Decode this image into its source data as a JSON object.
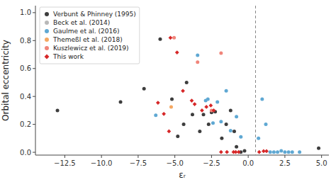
{
  "chart_data": {
    "type": "scatter",
    "xlabel": "εᵣ",
    "ylabel": "Orbital eccentricity",
    "xlim": [
      -14.5,
      5.5
    ],
    "ylim": [
      -0.02,
      1.05
    ],
    "xticks": [
      {
        "value": -12.5,
        "label": "−12.5"
      },
      {
        "value": -10.0,
        "label": "−10.0"
      },
      {
        "value": -7.5,
        "label": "−7.5"
      },
      {
        "value": -5.0,
        "label": "−5.0"
      },
      {
        "value": -2.5,
        "label": "−2.5"
      },
      {
        "value": 0.0,
        "label": "0.0"
      },
      {
        "value": 2.5,
        "label": "2.5"
      },
      {
        "value": 5.0,
        "label": "5.0"
      }
    ],
    "yticks": [
      {
        "value": 0.0,
        "label": "0.0"
      },
      0.2,
      0.4,
      0.6,
      0.8,
      {
        "value": 1.0,
        "label": "1.0"
      }
    ],
    "grid": false,
    "legend": "upper left",
    "reference_lines": [
      {
        "x": 0.5,
        "color": "#888888",
        "line_style": "dashed"
      }
    ],
    "series": [
      {
        "name": "Verbunt & Phinney (1995)",
        "color": "#3d3d3d",
        "marker": "circle",
        "x": [
          -13.0,
          -8.7,
          -7.1,
          -6.0,
          -5.2,
          -4.8,
          -4.4,
          -4.2,
          -3.8,
          -3.3,
          -3.05,
          -2.7,
          -2.5,
          -2.25,
          -1.8,
          -1.5,
          -1.2,
          -0.95,
          -0.8,
          -0.5,
          -0.25,
          4.8
        ],
        "values": [
          0.3,
          0.36,
          0.455,
          0.81,
          0.38,
          0.115,
          0.2,
          0.5,
          0.27,
          0.15,
          0.27,
          0.2,
          0.285,
          0.29,
          0.1,
          0.2,
          0.3,
          0.15,
          0.04,
          0.002,
          0.01,
          0.03
        ]
      },
      {
        "name": "Beck et al. (2014)",
        "color": "#b8b8b8",
        "marker": "circle",
        "x": [],
        "values": []
      },
      {
        "name": "Gaulme et al. (2016)",
        "color": "#5fa8d3",
        "marker": "circle",
        "x": [
          -6.3,
          -3.45,
          -2.9,
          -2.75,
          -2.4,
          -2.1,
          -1.85,
          -1.5,
          -1.2,
          -0.8,
          -0.5,
          0.7,
          0.95,
          1.2,
          1.5,
          1.75,
          2.0,
          2.25,
          2.5,
          2.75,
          3.0,
          3.5
        ],
        "values": [
          0.265,
          0.695,
          0.37,
          0.38,
          0.21,
          0.36,
          0.22,
          0.44,
          0.155,
          0.255,
          0.11,
          0.1,
          0.38,
          0.2,
          0.002,
          0.002,
          0.002,
          0.01,
          0.002,
          0.002,
          0.002,
          0.002
        ]
      },
      {
        "name": "Themeßl et al. (2018)",
        "color": "#f5a862",
        "marker": "circle",
        "x": [
          -5.25
        ],
        "values": [
          0.325
        ]
      },
      {
        "name": "Kuszlewicz et al. (2019)",
        "color": "#f0857a",
        "marker": "circle",
        "x": [
          -5.05,
          -3.45,
          -2.5,
          -1.85
        ],
        "values": [
          0.82,
          0.645,
          0.3,
          0.71
        ]
      },
      {
        "name": "This work",
        "color": "#d62728",
        "marker": "diamond",
        "x": [
          -6.15,
          -5.75,
          -5.4,
          -5.3,
          -4.85,
          -4.45,
          -3.85,
          -3.65,
          -3.15,
          -2.85,
          -2.55,
          -2.35,
          -1.85,
          -1.45,
          -1.0,
          -0.85,
          -0.65,
          0.75,
          1.05,
          1.25
        ],
        "values": [
          0.355,
          0.275,
          0.15,
          0.82,
          0.715,
          0.44,
          0.37,
          0.345,
          0.3,
          0.325,
          0.335,
          0.3,
          0.002,
          0.002,
          0.002,
          0.002,
          0.002,
          0.002,
          0.008,
          0.008
        ]
      }
    ]
  }
}
